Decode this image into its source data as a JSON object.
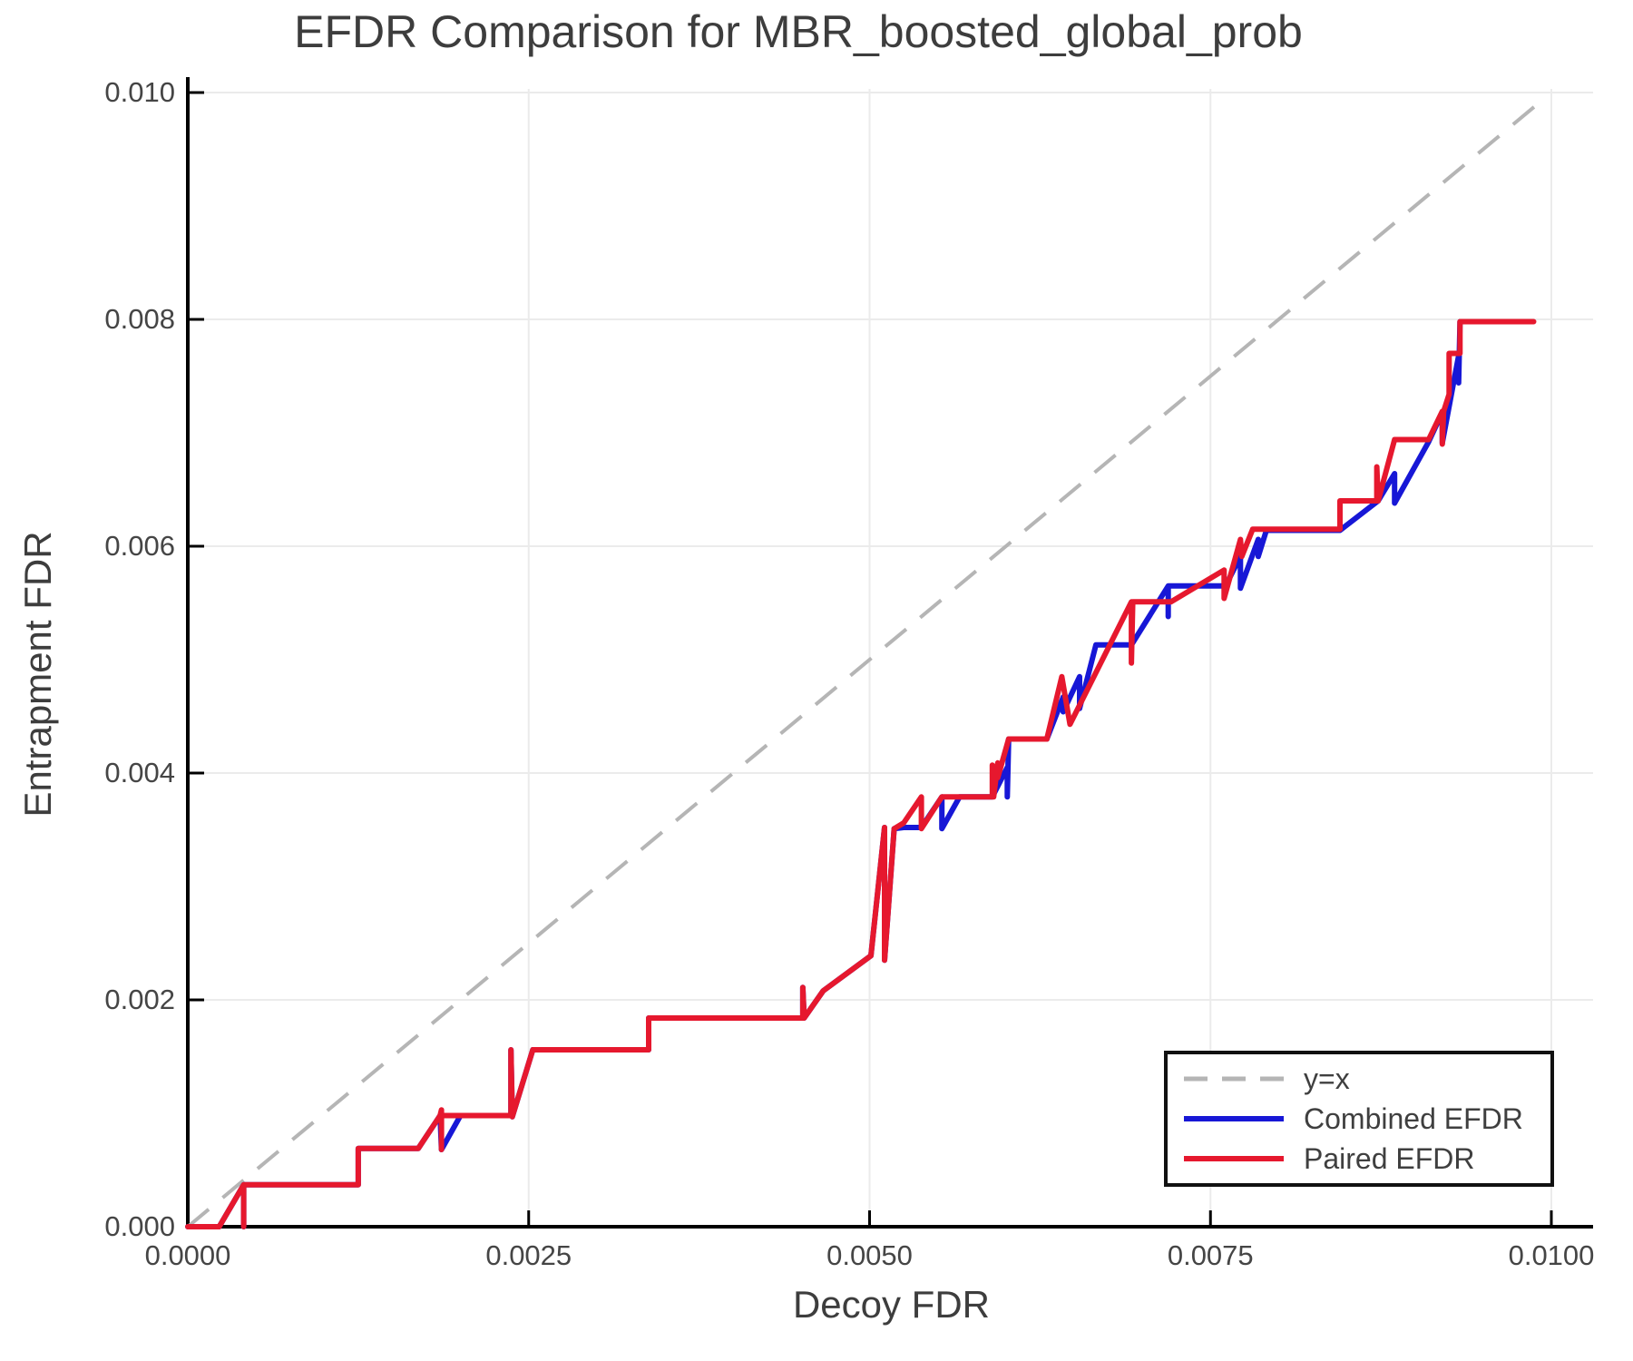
{
  "title": "EFDR Comparison for MBR_boosted_global_prob",
  "axes": {
    "x": {
      "label": "Decoy FDR",
      "min": 0.0,
      "max": 0.01,
      "ticks": [
        {
          "value": 0.0,
          "label": "0.0000"
        },
        {
          "value": 0.0025,
          "label": "0.0025"
        },
        {
          "value": 0.005,
          "label": "0.0050"
        },
        {
          "value": 0.0075,
          "label": "0.0075"
        },
        {
          "value": 0.01,
          "label": "0.0100"
        }
      ]
    },
    "y": {
      "label": "Entrapment FDR",
      "min": 0.0,
      "max": 0.01,
      "ticks": [
        {
          "value": 0.0,
          "label": "0.000"
        },
        {
          "value": 0.002,
          "label": "0.002"
        },
        {
          "value": 0.004,
          "label": "0.004"
        },
        {
          "value": 0.006,
          "label": "0.006"
        },
        {
          "value": 0.008,
          "label": "0.008"
        },
        {
          "value": 0.01,
          "label": "0.010"
        }
      ]
    }
  },
  "colors": {
    "identity": "#b5b5b5",
    "combined": "#1717d6",
    "paired": "#e6182e",
    "grid": "#ebebeb",
    "spine": "#000000",
    "text": "#3f3f3f"
  },
  "chart_data": {
    "type": "line",
    "title": "EFDR Comparison for MBR_boosted_global_prob",
    "xlabel": "Decoy FDR",
    "ylabel": "Entrapment FDR",
    "xlim": [
      0.0,
      0.01
    ],
    "ylim": [
      0.0,
      0.01
    ],
    "grid": true,
    "legend_position": "lower right",
    "series": [
      {
        "name": "y=x",
        "style": "dashed",
        "color": "#b5b5b5",
        "points": [
          [
            0.0,
            0.0
          ],
          [
            0.00995,
            0.00995
          ]
        ]
      },
      {
        "name": "Combined EFDR",
        "style": "solid",
        "color": "#1717d6",
        "points": [
          [
            0.0,
            0.0
          ],
          [
            0.00023,
            0.0
          ],
          [
            0.00041,
            0.00037
          ],
          [
            0.00041,
            0.0
          ],
          [
            0.00041,
            0.00037
          ],
          [
            0.00125,
            0.00037
          ],
          [
            0.00125,
            0.00069
          ],
          [
            0.00169,
            0.00069
          ],
          [
            0.00185,
            0.00098
          ],
          [
            0.00186,
            0.00068
          ],
          [
            0.002,
            0.00098
          ],
          [
            0.00237,
            0.00098
          ],
          [
            0.00237,
            0.00156
          ],
          [
            0.00238,
            0.00097
          ],
          [
            0.00253,
            0.00156
          ],
          [
            0.00338,
            0.00156
          ],
          [
            0.00338,
            0.00184
          ],
          [
            0.00451,
            0.00184
          ],
          [
            0.00451,
            0.00211
          ],
          [
            0.00452,
            0.00184
          ],
          [
            0.00466,
            0.00208
          ],
          [
            0.00501,
            0.00239
          ],
          [
            0.00511,
            0.00352
          ],
          [
            0.00511,
            0.00235
          ],
          [
            0.00518,
            0.00351
          ],
          [
            0.00525,
            0.00352
          ],
          [
            0.00538,
            0.00352
          ],
          [
            0.00553,
            0.00379
          ],
          [
            0.00553,
            0.00351
          ],
          [
            0.00566,
            0.00379
          ],
          [
            0.0059,
            0.00379
          ],
          [
            0.00601,
            0.00405
          ],
          [
            0.00601,
            0.00379
          ],
          [
            0.00602,
            0.0043
          ],
          [
            0.0063,
            0.0043
          ],
          [
            0.00642,
            0.00467
          ],
          [
            0.00642,
            0.00454
          ],
          [
            0.00654,
            0.00485
          ],
          [
            0.00654,
            0.00457
          ],
          [
            0.00666,
            0.00513
          ],
          [
            0.00692,
            0.00513
          ],
          [
            0.00719,
            0.00565
          ],
          [
            0.00719,
            0.00538
          ],
          [
            0.00719,
            0.00565
          ],
          [
            0.00761,
            0.00565
          ],
          [
            0.00772,
            0.00591
          ],
          [
            0.00772,
            0.00563
          ],
          [
            0.00785,
            0.00606
          ],
          [
            0.00785,
            0.00591
          ],
          [
            0.00791,
            0.00614
          ],
          [
            0.00845,
            0.00614
          ],
          [
            0.00873,
            0.0064
          ],
          [
            0.00885,
            0.00664
          ],
          [
            0.00885,
            0.00638
          ],
          [
            0.0091,
            0.00692
          ],
          [
            0.0092,
            0.00718
          ],
          [
            0.0092,
            0.00691
          ],
          [
            0.00932,
            0.00768
          ],
          [
            0.00932,
            0.00744
          ],
          [
            0.00933,
            0.00798
          ],
          [
            0.00986,
            0.00798
          ]
        ]
      },
      {
        "name": "Paired EFDR",
        "style": "solid",
        "color": "#e6182e",
        "points": [
          [
            0.0,
            0.0
          ],
          [
            0.00023,
            0.0
          ],
          [
            0.00041,
            0.00037
          ],
          [
            0.00041,
            0.0
          ],
          [
            0.00041,
            0.00037
          ],
          [
            0.00125,
            0.00037
          ],
          [
            0.00125,
            0.00069
          ],
          [
            0.00169,
            0.00069
          ],
          [
            0.00185,
            0.00098
          ],
          [
            0.00186,
            0.00103
          ],
          [
            0.00186,
            0.00068
          ],
          [
            0.00186,
            0.00098
          ],
          [
            0.00237,
            0.00098
          ],
          [
            0.00237,
            0.00156
          ],
          [
            0.00238,
            0.00097
          ],
          [
            0.00253,
            0.00156
          ],
          [
            0.00338,
            0.00156
          ],
          [
            0.00338,
            0.00184
          ],
          [
            0.00451,
            0.00184
          ],
          [
            0.00451,
            0.00211
          ],
          [
            0.00452,
            0.00184
          ],
          [
            0.00466,
            0.00208
          ],
          [
            0.00501,
            0.00239
          ],
          [
            0.00511,
            0.00352
          ],
          [
            0.00511,
            0.00235
          ],
          [
            0.00518,
            0.00351
          ],
          [
            0.00525,
            0.00356
          ],
          [
            0.00538,
            0.00379
          ],
          [
            0.00538,
            0.00351
          ],
          [
            0.00553,
            0.00379
          ],
          [
            0.0059,
            0.00379
          ],
          [
            0.0059,
            0.00407
          ],
          [
            0.00591,
            0.00379
          ],
          [
            0.00594,
            0.00409
          ],
          [
            0.00594,
            0.00396
          ],
          [
            0.00602,
            0.0043
          ],
          [
            0.0063,
            0.0043
          ],
          [
            0.00641,
            0.00485
          ],
          [
            0.00647,
            0.00443
          ],
          [
            0.00692,
            0.00551
          ],
          [
            0.00692,
            0.00497
          ],
          [
            0.00693,
            0.00551
          ],
          [
            0.00721,
            0.00551
          ],
          [
            0.0076,
            0.00579
          ],
          [
            0.0076,
            0.00554
          ],
          [
            0.00772,
            0.00606
          ],
          [
            0.00773,
            0.00591
          ],
          [
            0.00781,
            0.00615
          ],
          [
            0.00845,
            0.00615
          ],
          [
            0.00845,
            0.0064
          ],
          [
            0.00872,
            0.0064
          ],
          [
            0.00872,
            0.0067
          ],
          [
            0.00873,
            0.0064
          ],
          [
            0.00885,
            0.00694
          ],
          [
            0.0091,
            0.00694
          ],
          [
            0.0092,
            0.00719
          ],
          [
            0.0092,
            0.0069
          ],
          [
            0.00921,
            0.00719
          ],
          [
            0.00925,
            0.00734
          ],
          [
            0.00925,
            0.0077
          ],
          [
            0.00933,
            0.0077
          ],
          [
            0.00933,
            0.00798
          ],
          [
            0.00987,
            0.00798
          ]
        ]
      }
    ]
  },
  "legend": {
    "items": [
      {
        "label": "y=x"
      },
      {
        "label": "Combined EFDR"
      },
      {
        "label": "Paired EFDR"
      }
    ]
  }
}
